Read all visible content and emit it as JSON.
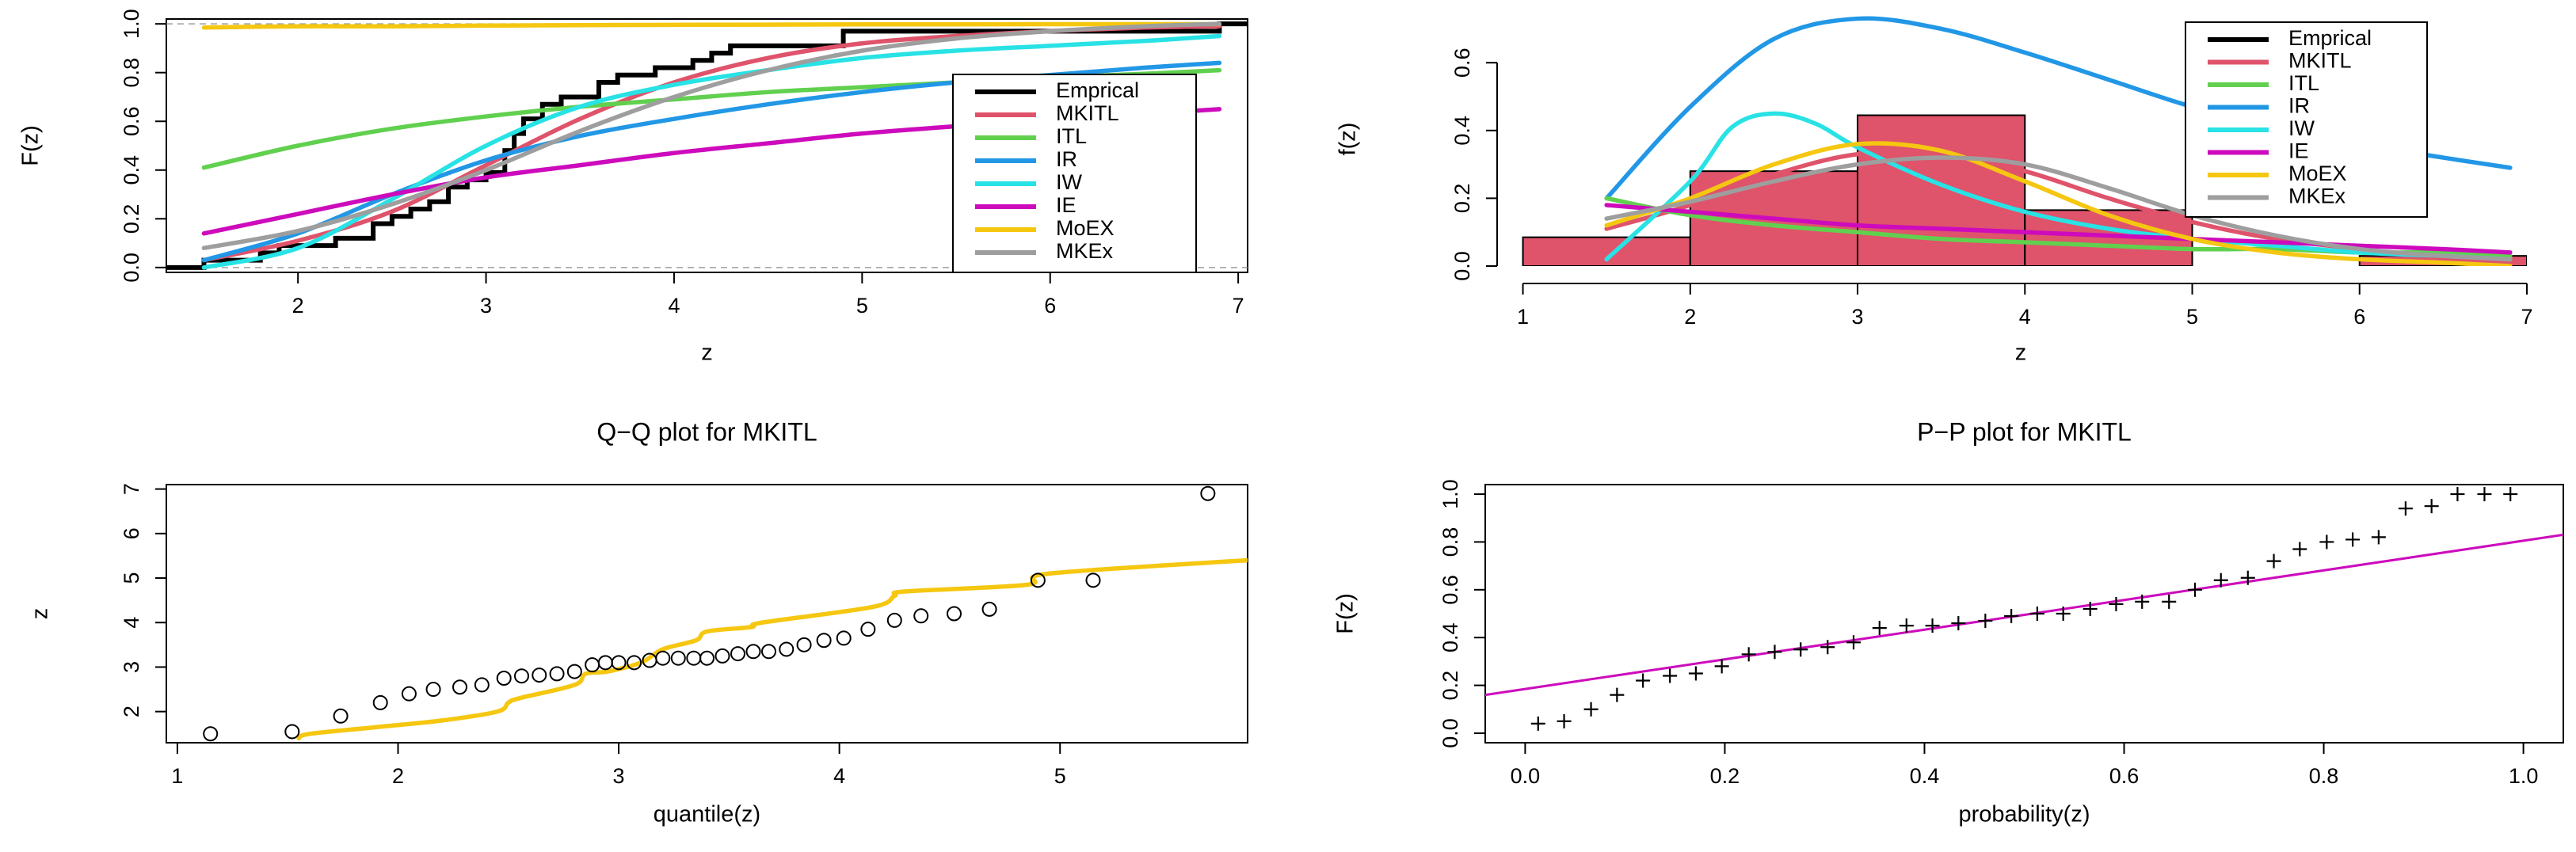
{
  "chart_data": [
    {
      "id": "cdf",
      "type": "line",
      "title": "",
      "xlabel": "z",
      "ylabel": "F(z)",
      "xlim": [
        1.3,
        7.05
      ],
      "ylim": [
        -0.02,
        1.02
      ],
      "xticks": [
        "2",
        "3",
        "4",
        "5",
        "6",
        "7"
      ],
      "xtick_values": [
        2,
        3,
        4,
        5,
        6,
        7
      ],
      "yticks": [
        "0.0",
        "0.2",
        "0.4",
        "0.6",
        "0.8",
        "1.0"
      ],
      "ytick_values": [
        0,
        0.2,
        0.4,
        0.6,
        0.8,
        1.0
      ],
      "reference_lines": [
        0,
        1
      ],
      "legend": {
        "position": "bottom-right",
        "entries": [
          {
            "name": "Emprical",
            "color": "#000000"
          },
          {
            "name": "MKITL",
            "color": "#DF536B"
          },
          {
            "name": "ITL",
            "color": "#61D04F"
          },
          {
            "name": "IR",
            "color": "#2297E6"
          },
          {
            "name": "IW",
            "color": "#28E2E5"
          },
          {
            "name": "IE",
            "color": "#CD0BBC"
          },
          {
            "name": "MoEX",
            "color": "#F5C710"
          },
          {
            "name": "MKEx",
            "color": "#9E9E9E"
          }
        ]
      },
      "empirical_step": {
        "name": "Emprical",
        "color": "#000000",
        "x": [
          1.2,
          1.5,
          1.8,
          1.9,
          2.2,
          2.4,
          2.5,
          2.6,
          2.7,
          2.8,
          2.9,
          3.0,
          3.1,
          3.15,
          3.2,
          3.3,
          3.4,
          3.6,
          3.7,
          3.9,
          4.1,
          4.2,
          4.3,
          4.9,
          6.9,
          7.2
        ],
        "y": [
          0.0,
          0.03,
          0.06,
          0.09,
          0.12,
          0.18,
          0.21,
          0.24,
          0.27,
          0.33,
          0.36,
          0.39,
          0.48,
          0.55,
          0.61,
          0.67,
          0.7,
          0.76,
          0.79,
          0.82,
          0.85,
          0.88,
          0.91,
          0.97,
          1.0,
          1.0
        ]
      },
      "series": [
        {
          "name": "MKITL",
          "color": "#DF536B",
          "x": [
            1.5,
            2,
            2.5,
            3,
            3.5,
            4,
            4.5,
            5,
            5.5,
            6,
            6.5,
            6.9
          ],
          "y": [
            0.03,
            0.11,
            0.23,
            0.42,
            0.61,
            0.76,
            0.86,
            0.92,
            0.95,
            0.97,
            0.985,
            0.99
          ]
        },
        {
          "name": "ITL",
          "color": "#61D04F",
          "x": [
            1.5,
            2,
            2.5,
            3,
            3.5,
            4,
            4.5,
            5,
            5.5,
            6,
            6.5,
            6.9
          ],
          "y": [
            0.41,
            0.5,
            0.57,
            0.62,
            0.66,
            0.69,
            0.72,
            0.74,
            0.76,
            0.78,
            0.795,
            0.81
          ]
        },
        {
          "name": "IR",
          "color": "#2297E6",
          "x": [
            1.5,
            2,
            2.5,
            3,
            3.5,
            4,
            4.5,
            5,
            5.5,
            6,
            6.5,
            6.9
          ],
          "y": [
            0.03,
            0.14,
            0.3,
            0.44,
            0.54,
            0.61,
            0.67,
            0.72,
            0.76,
            0.79,
            0.82,
            0.84
          ]
        },
        {
          "name": "IW",
          "color": "#28E2E5",
          "x": [
            1.5,
            2,
            2.5,
            3,
            3.5,
            4,
            4.5,
            5,
            5.5,
            6,
            6.5,
            6.9
          ],
          "y": [
            0.0,
            0.08,
            0.28,
            0.5,
            0.66,
            0.75,
            0.81,
            0.86,
            0.89,
            0.91,
            0.93,
            0.95
          ]
        },
        {
          "name": "IE",
          "color": "#CD0BBC",
          "x": [
            1.5,
            2,
            2.5,
            3,
            3.5,
            4,
            4.5,
            5,
            5.5,
            6,
            6.5,
            6.9
          ],
          "y": [
            0.14,
            0.22,
            0.3,
            0.37,
            0.42,
            0.47,
            0.51,
            0.55,
            0.58,
            0.61,
            0.63,
            0.65
          ]
        },
        {
          "name": "MoEX",
          "color": "#F5C710",
          "x": [
            1.5,
            2,
            2.5,
            3,
            3.5,
            4,
            4.5,
            5,
            5.5,
            6,
            6.5,
            6.9
          ],
          "y": [
            0.985,
            0.99,
            0.99,
            0.993,
            0.995,
            0.996,
            0.997,
            0.998,
            0.998,
            0.999,
            0.999,
            0.999
          ]
        },
        {
          "name": "MKEx",
          "color": "#9E9E9E",
          "x": [
            1.5,
            2,
            2.5,
            3,
            3.5,
            4,
            4.5,
            5,
            5.5,
            6,
            6.5,
            6.9
          ],
          "y": [
            0.08,
            0.15,
            0.26,
            0.4,
            0.56,
            0.7,
            0.81,
            0.89,
            0.94,
            0.97,
            0.99,
            1.0
          ]
        }
      ]
    },
    {
      "id": "pdf",
      "type": "bar",
      "title": "",
      "xlabel": "z",
      "ylabel": "f(z)",
      "xlim": [
        0.95,
        7.0
      ],
      "ylim": [
        0,
        0.75
      ],
      "xticks": [
        "1",
        "2",
        "3",
        "4",
        "5",
        "6",
        "7"
      ],
      "xtick_values": [
        1,
        2,
        3,
        4,
        5,
        6,
        7
      ],
      "yticks": [
        "0.0",
        "0.2",
        "0.4",
        "0.6"
      ],
      "ytick_values": [
        0,
        0.2,
        0.4,
        0.6
      ],
      "legend": {
        "position": "top-right",
        "entries": [
          {
            "name": "Emprical",
            "color": "#000000"
          },
          {
            "name": "MKITL",
            "color": "#DF536B"
          },
          {
            "name": "ITL",
            "color": "#61D04F"
          },
          {
            "name": "IR",
            "color": "#2297E6"
          },
          {
            "name": "IW",
            "color": "#28E2E5"
          },
          {
            "name": "IE",
            "color": "#CD0BBC"
          },
          {
            "name": "MoEX",
            "color": "#F5C710"
          },
          {
            "name": "MKEx",
            "color": "#9E9E9E"
          }
        ]
      },
      "histogram": {
        "color": "#DF536B",
        "bins": [
          [
            1,
            2
          ],
          [
            2,
            3
          ],
          [
            3,
            4
          ],
          [
            4,
            5
          ],
          [
            5,
            6
          ],
          [
            6,
            7
          ]
        ],
        "values": [
          0.085,
          0.28,
          0.445,
          0.165,
          0.0,
          0.03
        ]
      },
      "series": [
        {
          "name": "IR",
          "color": "#2297E6",
          "x": [
            1.5,
            2,
            2.5,
            3,
            3.5,
            4,
            4.5,
            5,
            5.5,
            6,
            6.5,
            6.9
          ],
          "y": [
            0.2,
            0.47,
            0.67,
            0.73,
            0.7,
            0.63,
            0.55,
            0.47,
            0.41,
            0.36,
            0.32,
            0.29
          ]
        },
        {
          "name": "MKITL",
          "color": "#DF536B",
          "x": [
            1.5,
            2,
            2.5,
            3,
            3.5,
            4,
            4.5,
            5,
            5.5,
            6,
            6.5,
            6.9
          ],
          "y": [
            0.11,
            0.18,
            0.27,
            0.33,
            0.33,
            0.28,
            0.2,
            0.13,
            0.08,
            0.05,
            0.02,
            0.01
          ]
        },
        {
          "name": "ITL",
          "color": "#61D04F",
          "x": [
            1.5,
            2,
            2.5,
            3,
            3.5,
            4,
            4.5,
            5,
            5.5,
            6,
            6.5,
            6.9
          ],
          "y": [
            0.2,
            0.15,
            0.12,
            0.1,
            0.08,
            0.07,
            0.06,
            0.05,
            0.05,
            0.04,
            0.04,
            0.03
          ]
        },
        {
          "name": "IW",
          "color": "#28E2E5",
          "x": [
            1.5,
            2,
            2.25,
            2.5,
            2.75,
            3,
            3.5,
            4,
            4.5,
            5,
            5.5,
            6,
            6.5,
            6.9
          ],
          "y": [
            0.02,
            0.25,
            0.41,
            0.45,
            0.42,
            0.35,
            0.24,
            0.16,
            0.11,
            0.08,
            0.06,
            0.04,
            0.03,
            0.02
          ]
        },
        {
          "name": "IE",
          "color": "#CD0BBC",
          "x": [
            1.5,
            2,
            2.5,
            3,
            3.5,
            4,
            4.5,
            5,
            5.5,
            6,
            6.5,
            6.9
          ],
          "y": [
            0.18,
            0.16,
            0.14,
            0.12,
            0.11,
            0.1,
            0.09,
            0.08,
            0.07,
            0.06,
            0.05,
            0.04
          ]
        },
        {
          "name": "MoEX",
          "color": "#F5C710",
          "x": [
            1.5,
            2,
            2.5,
            3,
            3.5,
            4,
            4.5,
            5,
            5.5,
            6,
            6.5,
            6.9
          ],
          "y": [
            0.12,
            0.2,
            0.3,
            0.36,
            0.34,
            0.25,
            0.15,
            0.08,
            0.04,
            0.02,
            0.01,
            0.0
          ]
        },
        {
          "name": "MKEx",
          "color": "#9E9E9E",
          "x": [
            1.5,
            2,
            2.5,
            3,
            3.5,
            4,
            4.5,
            5,
            5.5,
            6,
            6.5,
            6.9
          ],
          "y": [
            0.14,
            0.19,
            0.25,
            0.3,
            0.32,
            0.3,
            0.23,
            0.15,
            0.09,
            0.05,
            0.03,
            0.02
          ]
        }
      ]
    },
    {
      "id": "qq",
      "type": "scatter",
      "title": "Q−Q plot for  MKITL",
      "xlabel": "quantile(z)",
      "ylabel": "z",
      "xlim": [
        0.95,
        5.85
      ],
      "ylim": [
        1.3,
        7.1
      ],
      "xticks": [
        "1",
        "2",
        "3",
        "4",
        "5"
      ],
      "xtick_values": [
        1,
        2,
        3,
        4,
        5
      ],
      "yticks": [
        "2",
        "3",
        "4",
        "5",
        "6",
        "7"
      ],
      "ytick_values": [
        2,
        3,
        4,
        5,
        6,
        7
      ],
      "points": {
        "marker": "circle",
        "x": [
          1.15,
          1.52,
          1.74,
          1.92,
          2.05,
          2.16,
          2.28,
          2.38,
          2.48,
          2.56,
          2.64,
          2.72,
          2.8,
          2.88,
          2.94,
          3.0,
          3.07,
          3.14,
          3.2,
          3.27,
          3.34,
          3.4,
          3.47,
          3.54,
          3.61,
          3.68,
          3.76,
          3.84,
          3.93,
          4.02,
          4.13,
          4.25,
          4.37,
          4.52,
          4.68,
          4.9,
          5.15,
          5.67
        ],
        "y": [
          1.5,
          1.55,
          1.9,
          2.2,
          2.4,
          2.5,
          2.55,
          2.6,
          2.75,
          2.8,
          2.82,
          2.85,
          2.9,
          3.05,
          3.1,
          3.1,
          3.1,
          3.15,
          3.2,
          3.2,
          3.2,
          3.2,
          3.25,
          3.3,
          3.35,
          3.35,
          3.4,
          3.5,
          3.6,
          3.65,
          3.85,
          4.05,
          4.15,
          4.2,
          4.3,
          4.95,
          4.95,
          6.9
        ]
      },
      "series": [
        {
          "name": "",
          "color": "#F5C710",
          "x": [
            1.55,
            1.6,
            1.9,
            2.2,
            2.45,
            2.5,
            2.55,
            2.8,
            2.85,
            2.95,
            3.1,
            3.2,
            3.35,
            3.4,
            3.6,
            3.65,
            4.15,
            4.25,
            4.3,
            4.85,
            4.95,
            5.85
          ],
          "y": [
            1.4,
            1.5,
            1.65,
            1.8,
            2.0,
            2.2,
            2.3,
            2.6,
            2.85,
            2.9,
            3.1,
            3.4,
            3.6,
            3.8,
            3.9,
            4.0,
            4.35,
            4.6,
            4.7,
            4.85,
            5.1,
            5.4
          ]
        }
      ]
    },
    {
      "id": "pp",
      "type": "scatter",
      "title": "P−P plot for  MKITL",
      "xlabel": "probability(z)",
      "ylabel": "F(z)",
      "xlim": [
        -0.04,
        1.04
      ],
      "ylim": [
        -0.04,
        1.04
      ],
      "xticks": [
        "0.0",
        "0.2",
        "0.4",
        "0.6",
        "0.8",
        "1.0"
      ],
      "xtick_values": [
        0,
        0.2,
        0.4,
        0.6,
        0.8,
        1.0
      ],
      "yticks": [
        "0.0",
        "0.2",
        "0.4",
        "0.6",
        "0.8",
        "1.0"
      ],
      "ytick_values": [
        0,
        0.2,
        0.4,
        0.6,
        0.8,
        1.0
      ],
      "points": {
        "marker": "plus",
        "x": [
          0.013,
          0.039,
          0.066,
          0.092,
          0.118,
          0.145,
          0.171,
          0.197,
          0.224,
          0.25,
          0.276,
          0.303,
          0.329,
          0.355,
          0.382,
          0.408,
          0.434,
          0.461,
          0.487,
          0.513,
          0.539,
          0.566,
          0.592,
          0.618,
          0.645,
          0.671,
          0.697,
          0.724,
          0.75,
          0.776,
          0.803,
          0.829,
          0.855,
          0.882,
          0.908,
          0.934,
          0.961,
          0.987
        ],
        "y": [
          0.04,
          0.05,
          0.1,
          0.16,
          0.22,
          0.24,
          0.25,
          0.28,
          0.33,
          0.34,
          0.35,
          0.36,
          0.38,
          0.44,
          0.45,
          0.45,
          0.46,
          0.47,
          0.49,
          0.5,
          0.5,
          0.52,
          0.54,
          0.55,
          0.55,
          0.6,
          0.64,
          0.65,
          0.72,
          0.77,
          0.8,
          0.81,
          0.82,
          0.94,
          0.95,
          1.0,
          1.0,
          1.0
        ]
      },
      "series": [
        {
          "name": "",
          "color": "#CD0BBC",
          "x": [
            -0.04,
            1.04
          ],
          "y": [
            0.16,
            0.83
          ]
        }
      ]
    }
  ]
}
